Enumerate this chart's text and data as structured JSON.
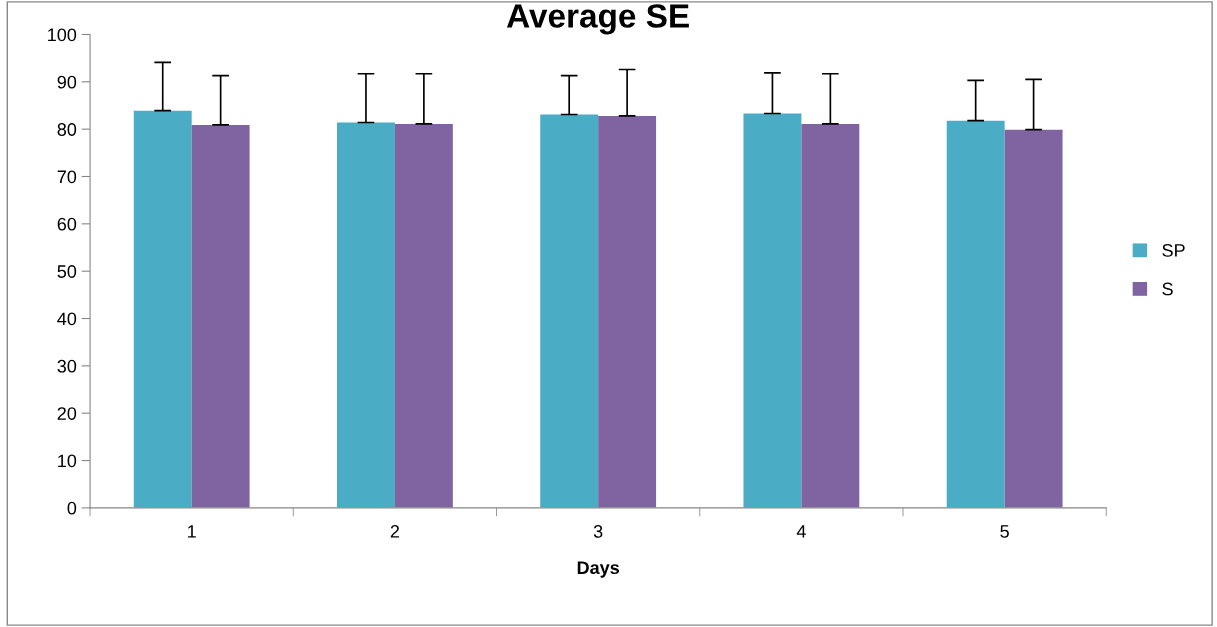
{
  "chart_data": {
    "type": "bar",
    "title": "Average SE",
    "xlabel": "Days",
    "categories": [
      "1",
      "2",
      "3",
      "4",
      "5"
    ],
    "series": [
      {
        "name": "SP",
        "color": "#4bacc6",
        "values": [
          83.9,
          81.4,
          83.1,
          83.3,
          81.8
        ],
        "errors": [
          [
            83.9,
            94.1
          ],
          [
            81.4,
            91.7
          ],
          [
            83.1,
            91.3
          ],
          [
            83.3,
            91.9
          ],
          [
            81.8,
            90.3
          ]
        ]
      },
      {
        "name": "S",
        "color": "#8064a2",
        "values": [
          80.9,
          81.1,
          82.8,
          81.1,
          79.9
        ],
        "errors": [
          [
            80.9,
            91.3
          ],
          [
            81.1,
            91.7
          ],
          [
            82.8,
            92.6
          ],
          [
            81.1,
            91.7
          ],
          [
            79.9,
            90.5
          ]
        ]
      }
    ],
    "ylim": [
      0,
      100
    ],
    "yticks": [
      0,
      10,
      20,
      30,
      40,
      50,
      60,
      70,
      80,
      90,
      100
    ],
    "grid": false,
    "legend": "right"
  }
}
